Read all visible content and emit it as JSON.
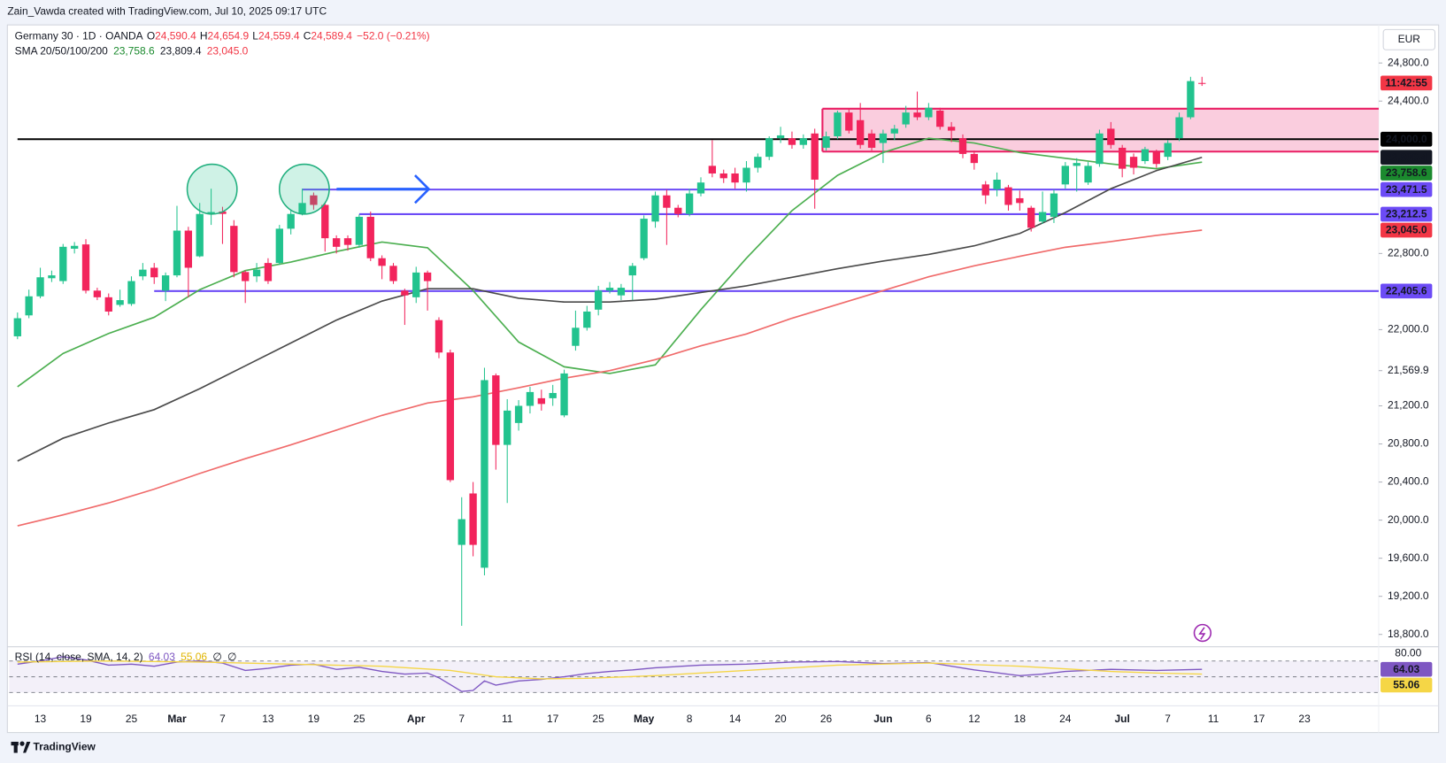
{
  "header": "Zain_Vawda created with TradingView.com, Jul 10, 2025 09:17 UTC",
  "footer_logo": "TradingView",
  "chart_data": {
    "type": "candlestick",
    "title": "Germany 30 · 1D · OANDA",
    "currency": "EUR",
    "legend": {
      "ohlc": [
        {
          "key": "O",
          "label": "24,590.4"
        },
        {
          "key": "H",
          "label": "24,654.9"
        },
        {
          "key": "L",
          "label": "24,559.4"
        },
        {
          "key": "C",
          "label": "24,589.4"
        }
      ],
      "change": "−52.0 (−0.21%)",
      "sma": "SMA 20/50/100/200"
    },
    "countdown": "11:42:55",
    "countdown_color": "#f23645",
    "up_color": "#22c38e",
    "down_color": "#f2245c",
    "categories": [
      null,
      null,
      "13",
      null,
      null,
      null,
      "19",
      null,
      null,
      null,
      "25",
      null,
      null,
      null,
      "Mar",
      null,
      null,
      null,
      "7",
      null,
      null,
      null,
      "13",
      null,
      null,
      null,
      "19",
      null,
      null,
      null,
      "25",
      null,
      null,
      null,
      null,
      "Apr",
      null,
      null,
      null,
      "7",
      null,
      null,
      null,
      "11",
      null,
      null,
      null,
      "17",
      null,
      null,
      null,
      "25",
      null,
      null,
      null,
      "May",
      null,
      null,
      null,
      "8",
      null,
      null,
      null,
      "14",
      null,
      null,
      null,
      "20",
      null,
      null,
      null,
      "26",
      null,
      null,
      null,
      null,
      "Jun",
      null,
      null,
      null,
      "6",
      null,
      null,
      null,
      "12",
      null,
      null,
      null,
      "18",
      null,
      null,
      null,
      "24",
      null,
      null,
      null,
      null,
      "Jul",
      null,
      null,
      null,
      "7",
      null,
      null,
      null,
      "11",
      null,
      null,
      null,
      "17",
      null,
      null,
      null,
      "23"
    ],
    "open": [
      21930,
      22150,
      22350,
      22540,
      22510,
      22850,
      22895,
      22410,
      22340,
      22260,
      22270,
      22560,
      22650,
      22410,
      22570,
      23040,
      22770,
      23215,
      23240,
      23090,
      22605,
      22560,
      22700,
      22700,
      23060,
      23215,
      23410,
      23310,
      22960,
      22960,
      22890,
      23185,
      22750,
      22670,
      22410,
      22340,
      22600,
      22100,
      21760,
      19740,
      20280,
      19500,
      21520,
      20790,
      21020,
      21200,
      21280,
      21280,
      21100,
      21830,
      22020,
      22210,
      22410,
      22360,
      22570,
      22750,
      23135,
      23410,
      23280,
      23215,
      23430,
      23720,
      23640,
      23640,
      23545,
      23700,
      23815,
      24010,
      24010,
      23940,
      24060,
      23910,
      24030,
      24280,
      24200,
      24060,
      23960,
      24060,
      24155,
      24280,
      24230,
      24300,
      24130,
      24010,
      23845,
      23525,
      23475,
      23495,
      23380,
      23280,
      23135,
      23185,
      23525,
      23720,
      23545,
      23740,
      24110,
      23910,
      23815,
      23770,
      23865,
      23815,
      24010,
      24230,
      24590.4,
      null,
      null,
      null,
      null,
      null,
      null,
      null,
      null,
      null
    ],
    "high": [
      22180,
      22420,
      22650,
      22620,
      22900,
      22920,
      22950,
      22440,
      22380,
      22420,
      22560,
      22700,
      22700,
      22600,
      23300,
      23080,
      23330,
      23480,
      23290,
      23150,
      22620,
      22700,
      22750,
      23100,
      23250,
      23480,
      23440,
      23330,
      22990,
      22990,
      23210,
      23240,
      22780,
      22700,
      22430,
      22660,
      22620,
      22130,
      21790,
      20240,
      20400,
      21600,
      21540,
      21270,
      21260,
      21400,
      21370,
      21420,
      21580,
      22200,
      22250,
      22460,
      22500,
      22480,
      22700,
      23200,
      23450,
      23470,
      23310,
      23480,
      23600,
      23990,
      23680,
      23700,
      23770,
      23850,
      24030,
      24130,
      24080,
      24050,
      24110,
      24080,
      24300,
      24320,
      24380,
      24100,
      24100,
      24150,
      24350,
      24500,
      24380,
      24330,
      24180,
      24050,
      23880,
      23560,
      23650,
      23520,
      23460,
      23300,
      23450,
      23470,
      23760,
      23800,
      23760,
      24100,
      24180,
      23940,
      23850,
      23920,
      23890,
      23990,
      24280,
      24655,
      24654.9,
      null,
      null,
      null,
      null,
      null,
      null,
      null,
      null,
      null
    ],
    "low": [
      21900,
      22120,
      22330,
      22500,
      22480,
      22800,
      22380,
      22310,
      22150,
      22240,
      22250,
      22520,
      22480,
      22300,
      22550,
      22340,
      22760,
      23100,
      22900,
      22550,
      22280,
      22500,
      22480,
      22680,
      23000,
      23200,
      23260,
      22820,
      22800,
      22830,
      22860,
      22720,
      22530,
      22480,
      22050,
      22280,
      22200,
      21700,
      20400,
      18890,
      19620,
      19420,
      20530,
      20180,
      20940,
      21120,
      21150,
      21200,
      21080,
      21780,
      21990,
      22150,
      22380,
      22310,
      22310,
      22730,
      23070,
      22890,
      23180,
      23190,
      23400,
      23600,
      23540,
      23480,
      23450,
      23650,
      23780,
      23960,
      23900,
      23900,
      23270,
      23880,
      24000,
      24060,
      23900,
      23880,
      23750,
      23990,
      24120,
      24200,
      24200,
      24100,
      23970,
      23800,
      23680,
      23320,
      23400,
      23250,
      23250,
      23030,
      23110,
      23120,
      23480,
      23450,
      23520,
      23710,
      23900,
      23600,
      23630,
      23740,
      23700,
      23780,
      23980,
      24210,
      24559.4,
      null,
      null,
      null,
      null,
      null,
      null,
      null,
      null,
      null
    ],
    "close": [
      22120,
      22350,
      22550,
      22570,
      22870,
      22880,
      22410,
      22340,
      22190,
      22310,
      22510,
      22630,
      22550,
      22570,
      23040,
      22650,
      23215,
      23235,
      23215,
      22605,
      22510,
      22630,
      22510,
      23060,
      23215,
      23330,
      23310,
      22960,
      22870,
      22890,
      23185,
      22750,
      22670,
      22510,
      22360,
      22600,
      22510,
      21760,
      20420,
      20010,
      19740,
      21470,
      20790,
      21150,
      21200,
      21345,
      21220,
      21335,
      21540,
      22020,
      22190,
      22410,
      22440,
      22440,
      22670,
      23165,
      23410,
      23280,
      23215,
      23430,
      23545,
      23640,
      23590,
      23545,
      23700,
      23815,
      24010,
      24040,
      23940,
      24010,
      23575,
      24030,
      24280,
      24090,
      23940,
      23910,
      24060,
      24110,
      24280,
      24230,
      24330,
      24130,
      24090,
      23845,
      23750,
      23410,
      23575,
      23310,
      23330,
      23070,
      23235,
      23430,
      23720,
      23750,
      23720,
      24060,
      23940,
      23690,
      23700,
      23895,
      23740,
      23960,
      24230,
      24610,
      24589.4,
      null,
      null,
      null,
      null,
      null,
      null,
      null,
      null,
      null
    ],
    "ylim": [
      18680,
      25200
    ],
    "yticks": [
      {
        "value": 24800,
        "label": "24,800.0"
      },
      {
        "value": 24400,
        "label": "24,400.0"
      },
      {
        "value": 22800,
        "label": "22,800.0"
      },
      {
        "value": 22000,
        "label": "22,000.0"
      },
      {
        "value": 21569.9,
        "label": "21,569.9"
      },
      {
        "value": 21200,
        "label": "21,200.0"
      },
      {
        "value": 20800,
        "label": "20,800.0"
      },
      {
        "value": 20400,
        "label": "20,400.0"
      },
      {
        "value": 20000,
        "label": "20,000.0"
      },
      {
        "value": 19600,
        "label": "19,600.0"
      },
      {
        "value": 19200,
        "label": "19,200.0"
      },
      {
        "value": 18800,
        "label": "18,800.0"
      }
    ],
    "grid": false,
    "zone": {
      "top": 24320,
      "bottom": 23870,
      "from": 71,
      "color": "#e91e63",
      "fill": "#f9c4d8"
    },
    "hlines": [
      {
        "value": 24000,
        "label": "24,000.0",
        "from": 0,
        "color": "#000000"
      },
      {
        "value": 23471.5,
        "label": "23,471.5",
        "from": 25,
        "color": "#6c4bf6"
      },
      {
        "value": 23212.5,
        "label": "23,212.5",
        "from": 30,
        "color": "#6c4bf6"
      },
      {
        "value": 22405.6,
        "label": "22,405.6",
        "from": 12,
        "color": "#6c4bf6"
      }
    ],
    "overlays": [
      {
        "color": "#4caf50",
        "label_color": "#1b8a2e",
        "last_label": "23,758.6",
        "x": [
          0,
          4,
          8,
          12,
          16,
          20,
          24,
          28,
          32,
          36,
          40,
          44,
          48,
          52,
          56,
          60,
          64,
          68,
          72,
          76,
          80,
          84,
          88,
          92,
          96,
          100,
          104
        ],
        "values": [
          21400,
          21750,
          21960,
          22130,
          22420,
          22620,
          22710,
          22820,
          22920,
          22860,
          22410,
          21870,
          21610,
          21540,
          21630,
          22210,
          22750,
          23250,
          23620,
          23860,
          24010,
          23960,
          23860,
          23800,
          23740,
          23690,
          23758.6
        ]
      },
      {
        "color": "#4a4a4a",
        "label_color": "#131722",
        "last_label": "23,809.4",
        "x": [
          0,
          4,
          8,
          12,
          16,
          20,
          24,
          28,
          32,
          36,
          40,
          44,
          48,
          52,
          56,
          60,
          64,
          68,
          72,
          76,
          80,
          84,
          88,
          92,
          96,
          100,
          104
        ],
        "values": [
          20620,
          20860,
          21020,
          21160,
          21380,
          21620,
          21860,
          22100,
          22300,
          22430,
          22430,
          22330,
          22290,
          22290,
          22320,
          22390,
          22460,
          22550,
          22640,
          22720,
          22790,
          22880,
          23010,
          23230,
          23480,
          23670,
          23809.4
        ]
      },
      {
        "color": "#f06b6b",
        "label_color": "#f23645",
        "last_label": "23,045.0",
        "x": [
          0,
          4,
          8,
          12,
          16,
          20,
          24,
          28,
          32,
          36,
          40,
          44,
          48,
          52,
          56,
          60,
          64,
          68,
          72,
          76,
          80,
          84,
          88,
          92,
          96,
          100,
          104
        ],
        "values": [
          19940,
          20055,
          20180,
          20325,
          20490,
          20645,
          20790,
          20945,
          21100,
          21230,
          21295,
          21390,
          21490,
          21570,
          21685,
          21830,
          21955,
          22120,
          22265,
          22410,
          22555,
          22670,
          22770,
          22865,
          22925,
          22990,
          23045
        ]
      }
    ],
    "rsi": {
      "title": "RSI (14, close, SMA, 14, 2)",
      "nulls": [
        "∅",
        "∅"
      ],
      "ylim": [
        0,
        100
      ],
      "yticks": [
        {
          "value": 80,
          "label": "80.00"
        }
      ],
      "levels": [
        80,
        50,
        20
      ],
      "band_color": "#7e57c2",
      "series": [
        {
          "color": "#7e57c2",
          "text_color": "#ffffff",
          "last_label": "64.03",
          "x": [
            0,
            2,
            4,
            6,
            8,
            10,
            12,
            14,
            16,
            18,
            20,
            22,
            24,
            26,
            28,
            30,
            32,
            34,
            36,
            37,
            38,
            39,
            40,
            41,
            42,
            44,
            46,
            48,
            50,
            52,
            54,
            56,
            60,
            64,
            68,
            72,
            76,
            80,
            84,
            88,
            90,
            92,
            96,
            100,
            104
          ],
          "values": [
            74,
            80,
            88,
            82,
            72,
            74,
            70,
            78,
            80,
            76,
            62,
            66,
            72,
            74,
            64,
            68,
            60,
            55,
            57,
            48,
            35,
            22,
            24,
            42,
            34,
            42,
            45,
            50,
            56,
            60,
            63,
            67,
            72,
            74,
            78,
            79,
            75,
            77,
            63,
            52,
            55,
            60,
            64,
            62,
            64.03
          ]
        },
        {
          "color": "#f5d646",
          "text_color": "#131722",
          "last_label": "55.06",
          "x": [
            0,
            8,
            16,
            24,
            32,
            38,
            42,
            46,
            50,
            56,
            64,
            72,
            80,
            88,
            96,
            100,
            104
          ],
          "values": [
            78,
            80,
            78,
            74,
            70,
            62,
            50,
            46,
            47,
            52,
            62,
            72,
            76,
            70,
            60,
            57,
            55.06
          ]
        }
      ]
    }
  }
}
